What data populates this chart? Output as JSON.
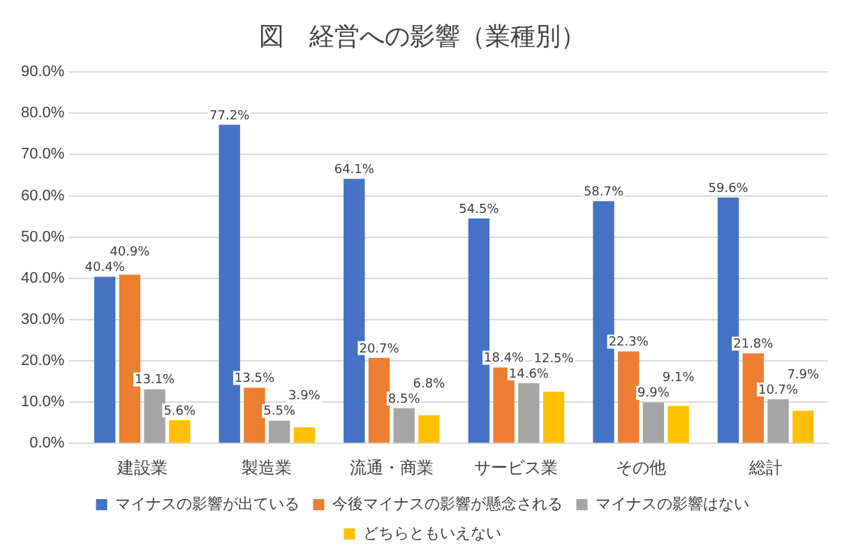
{
  "chart_data": {
    "type": "bar",
    "title": "図　経営への影響（業種別）",
    "categories": [
      "建設業",
      "製造業",
      "流通・商業",
      "サービス業",
      "その他",
      "総計"
    ],
    "series": [
      {
        "name": "マイナスの影響が出ている",
        "color": "#4472c4",
        "values": [
          40.4,
          77.2,
          64.1,
          54.5,
          58.7,
          59.6
        ],
        "value_labels": [
          "40.4%",
          "77.2%",
          "64.1%",
          "54.5%",
          "58.7%",
          "59.6%"
        ]
      },
      {
        "name": "今後マイナスの影響が懸念される",
        "color": "#ed7d31",
        "values": [
          40.9,
          13.5,
          20.7,
          18.4,
          22.3,
          21.8
        ],
        "value_labels": [
          "40.9%",
          "13.5%",
          "20.7%",
          "18.4%",
          "22.3%",
          "21.8%"
        ]
      },
      {
        "name": "マイナスの影響はない",
        "color": "#a5a5a5",
        "values": [
          13.1,
          5.5,
          8.5,
          14.6,
          9.9,
          10.7
        ],
        "value_labels": [
          "13.1%",
          "5.5%",
          "8.5%",
          "14.6%",
          "9.9%",
          "10.7%"
        ]
      },
      {
        "name": "どちらともいえない",
        "color": "#ffc000",
        "values": [
          5.6,
          3.9,
          6.8,
          12.5,
          9.1,
          7.9
        ],
        "value_labels": [
          "5.6%",
          "3.9%",
          "6.8%",
          "12.5%",
          "9.1%",
          "7.9%"
        ]
      }
    ],
    "ylim": [
      0,
      90
    ],
    "yticks": [
      {
        "value": 0,
        "label": "0.0%"
      },
      {
        "value": 10,
        "label": "10.0%"
      },
      {
        "value": 20,
        "label": "20.0%"
      },
      {
        "value": 30,
        "label": "30.0%"
      },
      {
        "value": 40,
        "label": "40.0%"
      },
      {
        "value": 50,
        "label": "50.0%"
      },
      {
        "value": 60,
        "label": "60.0%"
      },
      {
        "value": 70,
        "label": "70.0%"
      },
      {
        "value": 80,
        "label": "80.0%"
      },
      {
        "value": 90,
        "label": "90.0%"
      }
    ],
    "grid": "y",
    "legend": "bottom"
  }
}
